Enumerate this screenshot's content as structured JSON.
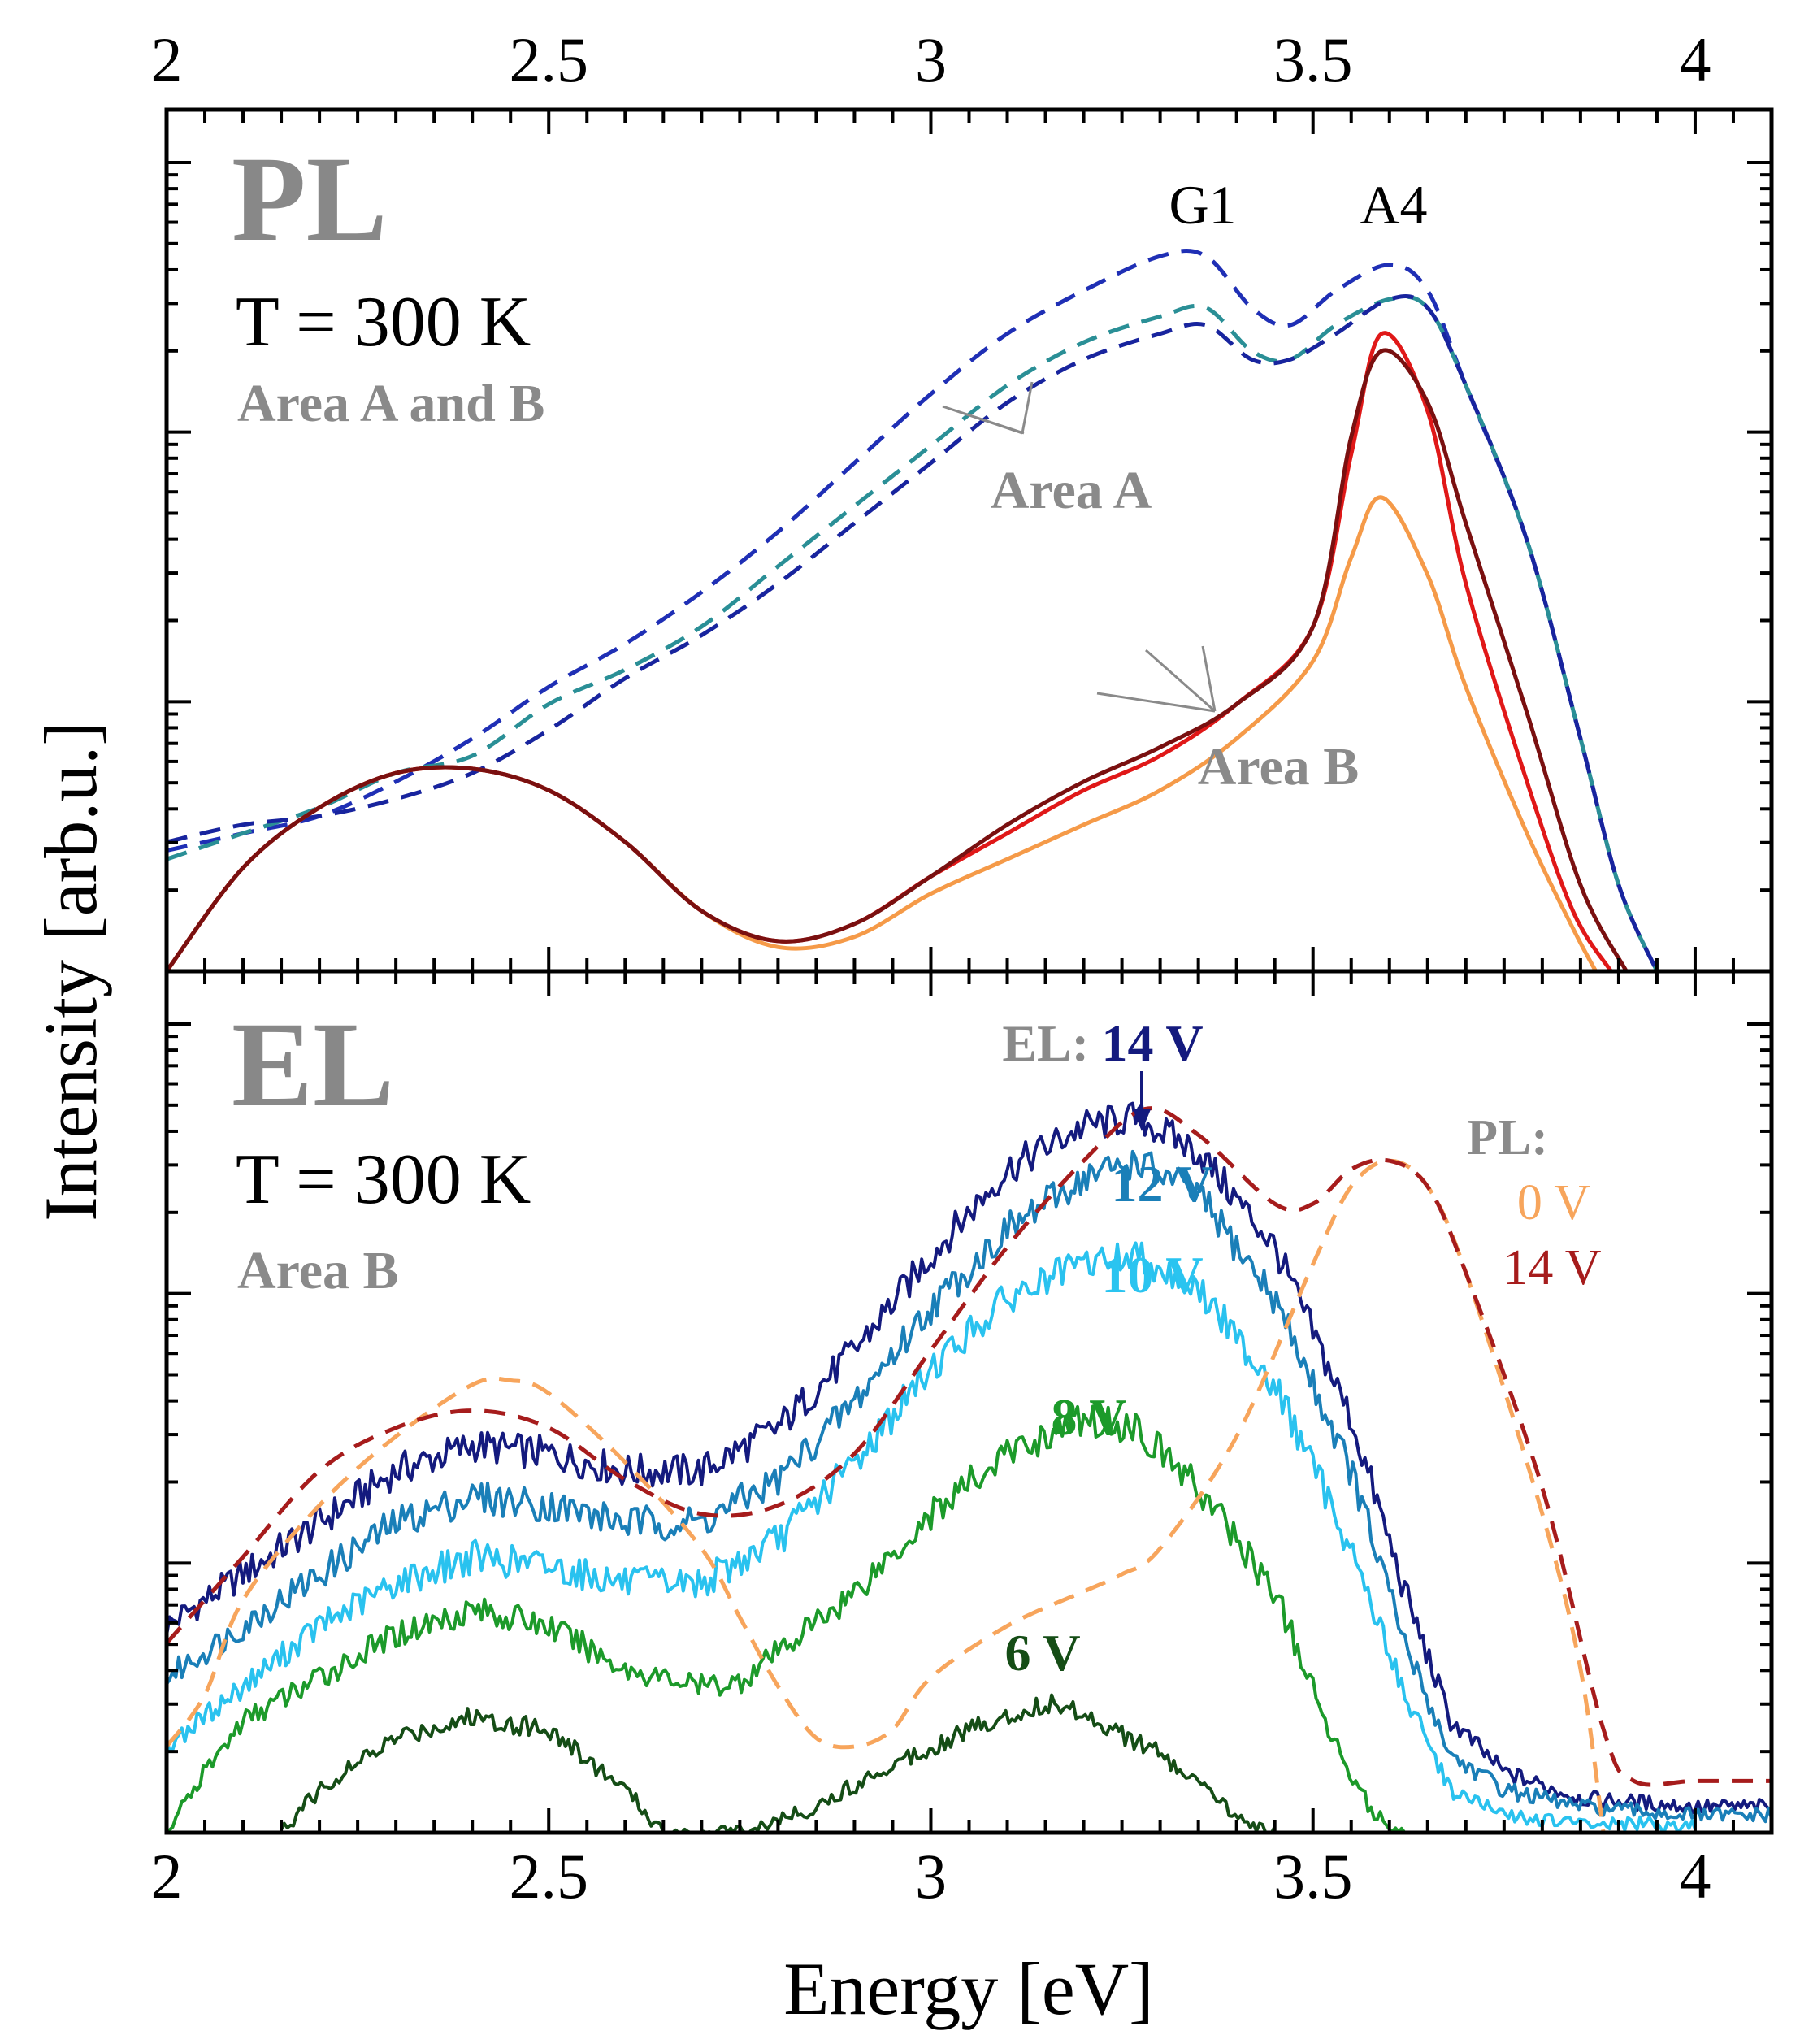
{
  "chart_data": {
    "type": "line",
    "xlabel": "Energy [eV]",
    "ylabel": "Intensity [arb.u.]",
    "xlim": [
      2.0,
      4.1
    ],
    "x_ticks": [
      "2",
      "2.5",
      "3",
      "3.5",
      "4"
    ],
    "y_scale": "log (arbitrary units, no tick labels)",
    "panels": [
      {
        "name": "PL",
        "title": "PL",
        "temperature": "T = 300 K",
        "subtitle": "Area A and B",
        "peak_labels": [
          {
            "text": "G1",
            "x": 3.36
          },
          {
            "text": "A4",
            "x": 3.59
          }
        ],
        "group_labels": [
          {
            "text": "Area A",
            "x": 3.18,
            "y": 0.6
          },
          {
            "text": "Area B",
            "x": 3.45,
            "y": 0.205
          }
        ],
        "series": [
          {
            "name": "Area A (1)",
            "group": "Area A",
            "style": "dashed",
            "color": "#1f2fb5",
            "x": [
              2.0,
              2.1,
              2.2,
              2.3,
              2.4,
              2.5,
              2.6,
              2.7,
              2.8,
              2.9,
              3.0,
              3.1,
              3.2,
              3.3,
              3.36,
              3.42,
              3.47,
              3.53,
              3.6,
              3.65,
              3.7,
              3.78,
              3.85,
              3.9,
              3.95
            ],
            "y": [
              0.14,
              0.16,
              0.18,
              0.22,
              0.27,
              0.33,
              0.38,
              0.44,
              0.51,
              0.59,
              0.67,
              0.74,
              0.79,
              0.83,
              0.83,
              0.77,
              0.75,
              0.79,
              0.82,
              0.79,
              0.68,
              0.5,
              0.27,
              0.1,
              0.0
            ]
          },
          {
            "name": "Area A (2)",
            "group": "Area A",
            "style": "dashed",
            "color": "#2a8f96",
            "x": [
              2.0,
              2.1,
              2.2,
              2.3,
              2.4,
              2.5,
              2.6,
              2.7,
              2.8,
              2.9,
              3.0,
              3.1,
              3.2,
              3.3,
              3.36,
              3.42,
              3.47,
              3.53,
              3.6,
              3.65,
              3.7,
              3.78,
              3.85,
              3.9,
              3.95
            ],
            "y": [
              0.13,
              0.16,
              0.19,
              0.23,
              0.25,
              0.31,
              0.35,
              0.4,
              0.47,
              0.54,
              0.61,
              0.68,
              0.73,
              0.76,
              0.77,
              0.72,
              0.71,
              0.75,
              0.78,
              0.77,
              0.68,
              0.5,
              0.27,
              0.1,
              0.0
            ]
          },
          {
            "name": "Area A (3)",
            "group": "Area A",
            "style": "dashed",
            "color": "#18249e",
            "x": [
              2.0,
              2.1,
              2.2,
              2.3,
              2.4,
              2.5,
              2.6,
              2.7,
              2.8,
              2.9,
              3.0,
              3.1,
              3.2,
              3.3,
              3.36,
              3.42,
              3.47,
              3.53,
              3.6,
              3.65,
              3.7,
              3.78,
              3.85,
              3.9,
              3.95
            ],
            "y": [
              0.15,
              0.17,
              0.18,
              0.2,
              0.23,
              0.28,
              0.34,
              0.39,
              0.45,
              0.52,
              0.59,
              0.66,
              0.71,
              0.74,
              0.75,
              0.71,
              0.71,
              0.74,
              0.78,
              0.77,
              0.68,
              0.5,
              0.27,
              0.1,
              0.0
            ]
          },
          {
            "name": "Area B (1)",
            "group": "Area B",
            "style": "solid",
            "color": "#f59a48",
            "x": [
              2.0,
              2.1,
              2.2,
              2.3,
              2.4,
              2.5,
              2.6,
              2.7,
              2.8,
              2.9,
              3.0,
              3.1,
              3.2,
              3.3,
              3.4,
              3.5,
              3.55,
              3.59,
              3.65,
              3.7,
              3.78,
              3.84,
              3.87
            ],
            "y": [
              0.0,
              0.12,
              0.19,
              0.23,
              0.235,
              0.21,
              0.15,
              0.07,
              0.028,
              0.04,
              0.09,
              0.13,
              0.17,
              0.21,
              0.27,
              0.36,
              0.48,
              0.55,
              0.46,
              0.33,
              0.16,
              0.05,
              0.0
            ]
          },
          {
            "name": "Area B (2)",
            "group": "Area B",
            "style": "solid",
            "color": "#e01818",
            "x": [
              2.0,
              2.1,
              2.2,
              2.3,
              2.4,
              2.5,
              2.6,
              2.7,
              2.8,
              2.9,
              3.0,
              3.1,
              3.2,
              3.3,
              3.4,
              3.5,
              3.55,
              3.59,
              3.65,
              3.7,
              3.78,
              3.84,
              3.89
            ],
            "y": [
              0.0,
              0.12,
              0.19,
              0.23,
              0.235,
              0.21,
              0.15,
              0.07,
              0.035,
              0.055,
              0.11,
              0.16,
              0.21,
              0.25,
              0.31,
              0.4,
              0.6,
              0.74,
              0.65,
              0.45,
              0.22,
              0.07,
              0.0
            ]
          },
          {
            "name": "Area B (3)",
            "group": "Area B",
            "style": "solid",
            "color": "#7a1010",
            "x": [
              2.0,
              2.1,
              2.2,
              2.3,
              2.4,
              2.5,
              2.6,
              2.7,
              2.8,
              2.9,
              3.0,
              3.1,
              3.2,
              3.3,
              3.4,
              3.5,
              3.55,
              3.59,
              3.65,
              3.7,
              3.78,
              3.85,
              3.91
            ],
            "y": [
              0.0,
              0.12,
              0.19,
              0.23,
              0.235,
              0.21,
              0.15,
              0.07,
              0.035,
              0.055,
              0.11,
              0.17,
              0.22,
              0.26,
              0.31,
              0.4,
              0.62,
              0.72,
              0.66,
              0.52,
              0.3,
              0.1,
              0.0
            ]
          }
        ]
      },
      {
        "name": "EL",
        "title": "EL",
        "temperature": "T = 300 K",
        "subtitle": "Area B",
        "el_prefix": "EL:",
        "pl_prefix": "PL:",
        "series": [
          {
            "name": "EL 14 V",
            "label": "14 V",
            "style": "solid",
            "color": "#141a7e",
            "label_color": "#141a7e",
            "x": [
              2.0,
              2.1,
              2.2,
              2.3,
              2.4,
              2.5,
              2.6,
              2.7,
              2.8,
              2.9,
              3.0,
              3.1,
              3.2,
              3.27,
              3.35,
              3.45,
              3.55,
              3.62,
              3.68,
              3.75,
              3.85,
              4.0,
              4.1
            ],
            "y": [
              0.24,
              0.3,
              0.36,
              0.42,
              0.45,
              0.44,
              0.42,
              0.42,
              0.47,
              0.56,
              0.67,
              0.77,
              0.82,
              0.83,
              0.79,
              0.68,
              0.48,
              0.28,
              0.13,
              0.07,
              0.04,
              0.03,
              0.03
            ]
          },
          {
            "name": "EL 12 V",
            "label": "12 V",
            "style": "solid",
            "color": "#1a7fb8",
            "label_color": "#1a7fb8",
            "x": [
              2.0,
              2.1,
              2.2,
              2.3,
              2.4,
              2.5,
              2.6,
              2.7,
              2.8,
              2.9,
              3.0,
              3.1,
              3.2,
              3.27,
              3.35,
              3.45,
              3.55,
              3.62,
              3.68,
              3.75,
              3.85,
              4.0,
              4.1
            ],
            "y": [
              0.18,
              0.24,
              0.3,
              0.36,
              0.39,
              0.38,
              0.36,
              0.36,
              0.41,
              0.5,
              0.61,
              0.7,
              0.76,
              0.78,
              0.74,
              0.62,
              0.42,
              0.22,
              0.09,
              0.05,
              0.03,
              0.02,
              0.02
            ]
          },
          {
            "name": "EL 10 V",
            "label": "10 V",
            "style": "solid",
            "color": "#29c2ef",
            "label_color": "#2ac4f0",
            "x": [
              2.0,
              2.1,
              2.2,
              2.3,
              2.4,
              2.5,
              2.6,
              2.7,
              2.8,
              2.9,
              3.0,
              3.1,
              3.2,
              3.27,
              3.35,
              3.45,
              3.55,
              3.62,
              3.68,
              3.75,
              3.85,
              4.0
            ],
            "y": [
              0.1,
              0.17,
              0.24,
              0.29,
              0.32,
              0.31,
              0.29,
              0.29,
              0.34,
              0.43,
              0.54,
              0.62,
              0.66,
              0.67,
              0.63,
              0.52,
              0.33,
              0.16,
              0.05,
              0.02,
              0.01,
              0.01
            ]
          },
          {
            "name": "EL 8 V",
            "label": "8 V",
            "style": "solid",
            "color": "#1c9a2a",
            "label_color": "#1c9a2a",
            "x": [
              2.0,
              2.05,
              2.1,
              2.2,
              2.3,
              2.4,
              2.5,
              2.6,
              2.7,
              2.75,
              2.8,
              2.9,
              3.0,
              3.1,
              3.2,
              3.27,
              3.35,
              3.45,
              3.52,
              3.58,
              3.62
            ],
            "y": [
              0.0,
              0.07,
              0.13,
              0.18,
              0.23,
              0.26,
              0.24,
              0.19,
              0.17,
              0.175,
              0.21,
              0.28,
              0.37,
              0.44,
              0.48,
              0.47,
              0.4,
              0.28,
              0.12,
              0.02,
              0.0
            ]
          },
          {
            "name": "EL 6 V",
            "label": "6 V",
            "style": "solid",
            "color": "#154d16",
            "label_color": "#154d16",
            "x": [
              2.15,
              2.2,
              2.3,
              2.4,
              2.5,
              2.6,
              2.65,
              2.75,
              2.85,
              2.95,
              3.05,
              3.15,
              3.2,
              3.3,
              3.4,
              3.45
            ],
            "y": [
              0.0,
              0.05,
              0.11,
              0.135,
              0.12,
              0.05,
              0.0,
              0.0,
              0.03,
              0.08,
              0.12,
              0.15,
              0.14,
              0.09,
              0.02,
              0.0
            ]
          },
          {
            "name": "PL 0 V",
            "label": "0 V",
            "style": "dashed",
            "color": "#f7a55c",
            "label_color": "#f7a55c",
            "x": [
              2.0,
              2.05,
              2.1,
              2.2,
              2.3,
              2.4,
              2.45,
              2.5,
              2.6,
              2.7,
              2.75,
              2.8,
              2.85,
              2.9,
              2.95,
              3.0,
              3.1,
              3.2,
              3.25,
              3.3,
              3.4,
              3.5,
              3.55,
              3.6,
              3.65,
              3.7,
              3.8,
              3.85,
              3.88
            ],
            "y": [
              0.1,
              0.16,
              0.27,
              0.38,
              0.46,
              0.52,
              0.525,
              0.51,
              0.43,
              0.33,
              0.25,
              0.17,
              0.11,
              0.1,
              0.12,
              0.18,
              0.24,
              0.28,
              0.3,
              0.33,
              0.46,
              0.66,
              0.75,
              0.78,
              0.75,
              0.65,
              0.37,
              0.19,
              0.0
            ]
          },
          {
            "name": "PL 14 V",
            "label": "14 V",
            "style": "dashed",
            "color": "#a61c1c",
            "label_color": "#a61c1c",
            "x": [
              2.0,
              2.05,
              2.1,
              2.2,
              2.3,
              2.4,
              2.5,
              2.6,
              2.7,
              2.8,
              2.9,
              3.0,
              3.1,
              3.2,
              3.28,
              3.35,
              3.45,
              3.5,
              3.55,
              3.6,
              3.65,
              3.7,
              3.8,
              3.88,
              3.92,
              4.0,
              4.1
            ],
            "y": [
              0.22,
              0.27,
              0.32,
              0.42,
              0.47,
              0.49,
              0.47,
              0.41,
              0.37,
              0.38,
              0.44,
              0.56,
              0.68,
              0.78,
              0.84,
              0.81,
              0.73,
              0.73,
              0.77,
              0.78,
              0.75,
              0.65,
              0.4,
              0.12,
              0.06,
              0.06,
              0.06
            ]
          }
        ]
      }
    ]
  }
}
